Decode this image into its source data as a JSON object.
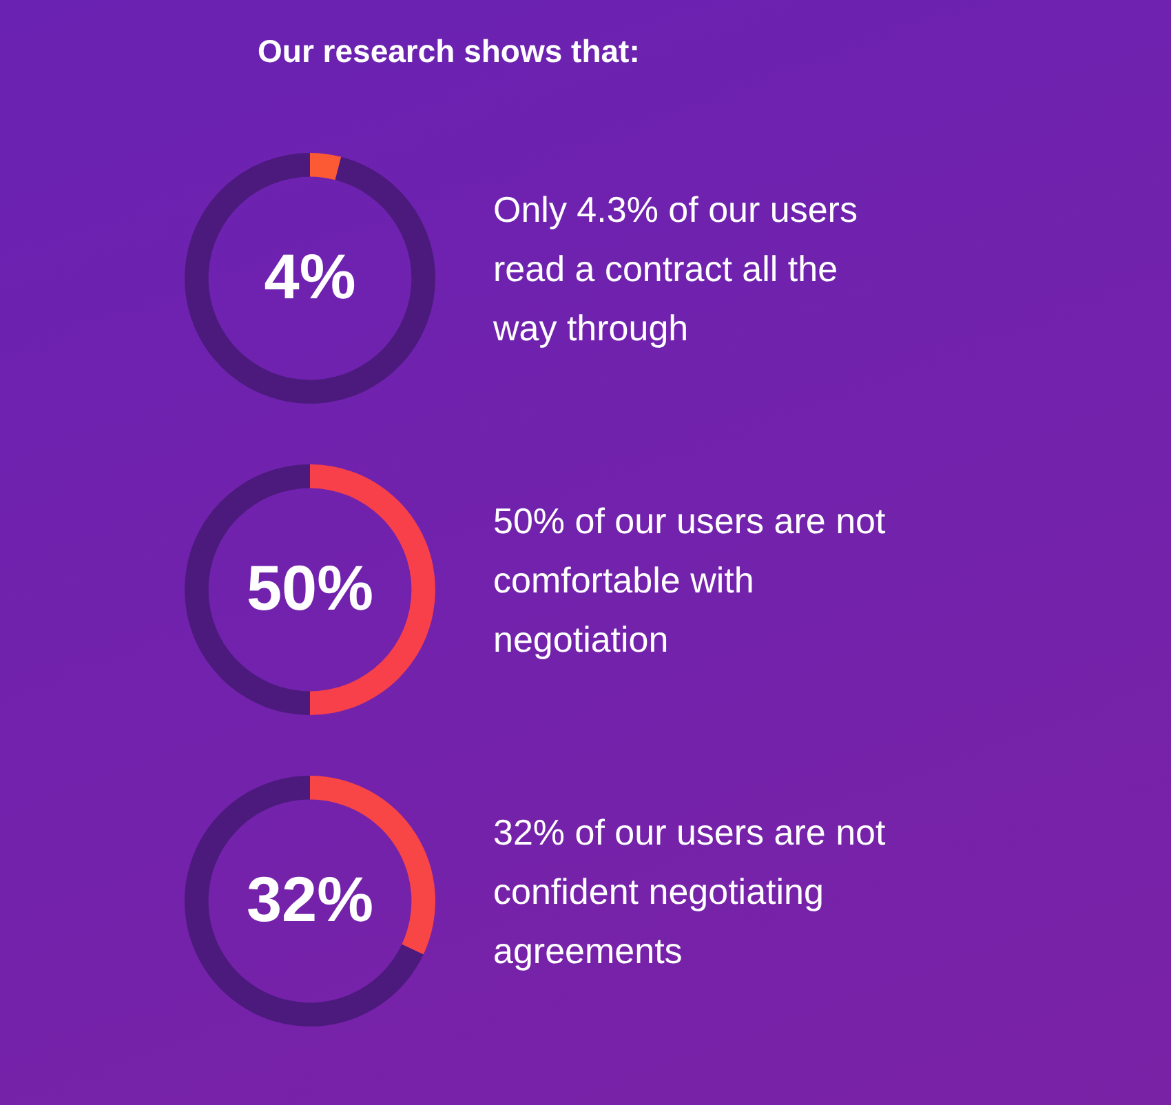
{
  "chart_data": [
    {
      "type": "donut",
      "title": "Our research shows that:",
      "categories": [
        null,
        null
      ],
      "values": [
        4,
        96
      ],
      "colors": [
        "#fb5a34",
        "#4b1a7c"
      ],
      "value_labels": [
        "4%",
        null
      ],
      "annotations": [
        "Only 4.3% of our users read a contract all the way through"
      ]
    },
    {
      "type": "donut",
      "categories": [
        null,
        null
      ],
      "values": [
        50,
        50
      ],
      "colors": [
        "#f8404a",
        "#4b1a7c"
      ],
      "value_labels": [
        "50%",
        null
      ],
      "annotations": [
        "50% of our users are not comfortable with negotiation"
      ]
    },
    {
      "type": "donut",
      "categories": [
        null,
        null
      ],
      "values": [
        32,
        68
      ],
      "colors": [
        "#f84646",
        "#4b1a7c"
      ],
      "value_labels": [
        "32%",
        null
      ],
      "annotations": [
        "32% of our users are not confident negotiating agreements"
      ]
    }
  ]
}
